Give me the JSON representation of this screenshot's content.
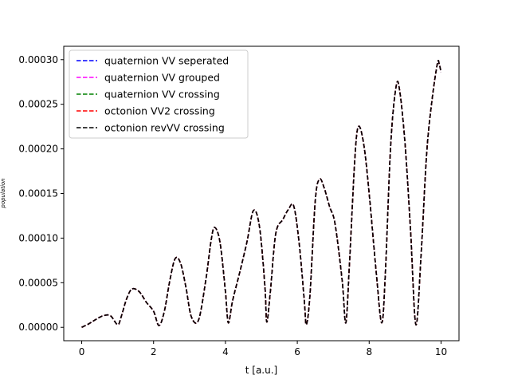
{
  "chart_data": {
    "type": "line",
    "xlabel": "t [a.u.]",
    "ylabel": "population",
    "xlim": [
      -0.5,
      10.5
    ],
    "ylim": [
      -1.5e-05,
      0.000315
    ],
    "xticks": [
      0,
      2,
      4,
      6,
      8,
      10
    ],
    "xtick_labels": [
      "0",
      "2",
      "4",
      "6",
      "8",
      "10"
    ],
    "yticks": [
      0,
      5e-05,
      0.0001,
      0.00015,
      0.0002,
      0.00025,
      0.0003
    ],
    "ytick_labels": [
      "0.00000",
      "0.00005",
      "0.00010",
      "0.00015",
      "0.00020",
      "0.00025",
      "0.00030"
    ],
    "grid": false,
    "legend_position": "upper-left",
    "line_style": "dashed",
    "x": [
      0,
      0.2,
      0.4,
      0.6,
      0.8,
      1.0,
      1.1,
      1.25,
      1.4,
      1.6,
      1.8,
      2.0,
      2.15,
      2.3,
      2.45,
      2.6,
      2.75,
      2.9,
      3.05,
      3.25,
      3.45,
      3.6,
      3.7,
      3.85,
      4.0,
      4.08,
      4.2,
      4.4,
      4.6,
      4.78,
      4.95,
      5.1,
      5.15,
      5.25,
      5.4,
      5.6,
      5.75,
      5.9,
      6.05,
      6.2,
      6.25,
      6.35,
      6.5,
      6.62,
      6.75,
      6.9,
      7.05,
      7.25,
      7.35,
      7.45,
      7.6,
      7.7,
      7.85,
      8.0,
      8.2,
      8.35,
      8.45,
      8.6,
      8.75,
      8.85,
      9.0,
      9.15,
      9.3,
      9.45,
      9.6,
      9.75,
      9.9,
      9.95,
      10.0
    ],
    "series": [
      {
        "name": "quaternion VV seperated",
        "color": "#0000ff",
        "y": [
          0,
          4e-06,
          9e-06,
          1.3e-05,
          1.3e-05,
          3e-06,
          1.2e-05,
          3.2e-05,
          4.3e-05,
          4e-05,
          2.8e-05,
          1.8e-05,
          2e-06,
          1.8e-05,
          5.2e-05,
          7.7e-05,
          7.2e-05,
          4.5e-05,
          1.2e-05,
          8e-06,
          5.2e-05,
          9.7e-05,
          0.000112,
          9.5e-05,
          4e-05,
          5e-06,
          3e-05,
          6.2e-05,
          9.6e-05,
          0.000131,
          0.000112,
          4.5e-05,
          6e-06,
          4e-05,
          0.000105,
          0.000121,
          0.000132,
          0.000136,
          9.5e-05,
          2.7e-05,
          3e-06,
          3.5e-05,
          0.000142,
          0.000166,
          0.000156,
          0.000135,
          0.000116,
          5.2e-05,
          5e-06,
          7e-05,
          0.000188,
          0.000225,
          0.000205,
          0.00015,
          6e-05,
          5e-06,
          6e-05,
          0.000205,
          0.00027,
          0.000265,
          0.000205,
          0.00011,
          3e-06,
          8.5e-05,
          0.000195,
          0.000255,
          0.000296,
          0.000295,
          0.000286
        ]
      },
      {
        "name": "quaternion VV grouped",
        "color": "#ff00ff",
        "y": [
          0,
          4e-06,
          9e-06,
          1.3e-05,
          1.3e-05,
          3e-06,
          1.2e-05,
          3.2e-05,
          4.3e-05,
          4e-05,
          2.8e-05,
          1.8e-05,
          2e-06,
          1.8e-05,
          5.2e-05,
          7.7e-05,
          7.2e-05,
          4.5e-05,
          1.2e-05,
          8e-06,
          5.2e-05,
          9.7e-05,
          0.000112,
          9.5e-05,
          4e-05,
          5e-06,
          3e-05,
          6.2e-05,
          9.6e-05,
          0.000131,
          0.000112,
          4.5e-05,
          6e-06,
          4e-05,
          0.000105,
          0.000121,
          0.000132,
          0.000136,
          9.5e-05,
          2.7e-05,
          3e-06,
          3.5e-05,
          0.000142,
          0.000166,
          0.000156,
          0.000135,
          0.000116,
          5.2e-05,
          5e-06,
          7e-05,
          0.000188,
          0.000225,
          0.000205,
          0.00015,
          6e-05,
          5e-06,
          6e-05,
          0.000205,
          0.00027,
          0.000265,
          0.000205,
          0.00011,
          3e-06,
          8.5e-05,
          0.000195,
          0.000255,
          0.000296,
          0.000295,
          0.000286
        ]
      },
      {
        "name": "quaternion VV crossing",
        "color": "#008000",
        "y": [
          0,
          4e-06,
          9e-06,
          1.3e-05,
          1.3e-05,
          3e-06,
          1.2e-05,
          3.2e-05,
          4.3e-05,
          4e-05,
          2.8e-05,
          1.8e-05,
          2e-06,
          1.8e-05,
          5.2e-05,
          7.7e-05,
          7.2e-05,
          4.5e-05,
          1.2e-05,
          8e-06,
          5.2e-05,
          9.7e-05,
          0.000112,
          9.5e-05,
          4e-05,
          5e-06,
          3e-05,
          6.2e-05,
          9.6e-05,
          0.000131,
          0.000112,
          4.5e-05,
          6e-06,
          4e-05,
          0.000105,
          0.000121,
          0.000132,
          0.000136,
          9.5e-05,
          2.7e-05,
          3e-06,
          3.5e-05,
          0.000142,
          0.000166,
          0.000156,
          0.000135,
          0.000116,
          5.2e-05,
          5e-06,
          7e-05,
          0.000188,
          0.000225,
          0.000205,
          0.00015,
          6e-05,
          5e-06,
          6e-05,
          0.000205,
          0.00027,
          0.000265,
          0.000205,
          0.00011,
          3e-06,
          8.5e-05,
          0.000195,
          0.000255,
          0.000296,
          0.000295,
          0.000286
        ]
      },
      {
        "name": "octonion VV2 crossing",
        "color": "#ff0000",
        "y": [
          0,
          4e-06,
          9e-06,
          1.3e-05,
          1.3e-05,
          3e-06,
          1.2e-05,
          3.2e-05,
          4.3e-05,
          4e-05,
          2.8e-05,
          1.8e-05,
          2e-06,
          1.8e-05,
          5.2e-05,
          7.7e-05,
          7.2e-05,
          4.5e-05,
          1.2e-05,
          8e-06,
          5.2e-05,
          9.7e-05,
          0.000112,
          9.5e-05,
          4e-05,
          5e-06,
          3e-05,
          6.2e-05,
          9.6e-05,
          0.000131,
          0.000112,
          4.5e-05,
          6e-06,
          4e-05,
          0.000105,
          0.000121,
          0.000132,
          0.000136,
          9.5e-05,
          2.7e-05,
          3e-06,
          3.5e-05,
          0.000142,
          0.000166,
          0.000156,
          0.000135,
          0.000116,
          5.2e-05,
          5e-06,
          7e-05,
          0.000188,
          0.000225,
          0.000205,
          0.00015,
          6e-05,
          5e-06,
          6e-05,
          0.000205,
          0.00027,
          0.000265,
          0.000205,
          0.00011,
          3e-06,
          8.5e-05,
          0.000195,
          0.000255,
          0.000296,
          0.000295,
          0.000286
        ]
      },
      {
        "name": "octonion revVV crossing",
        "color": "#000000",
        "y": [
          0,
          4e-06,
          9e-06,
          1.3e-05,
          1.3e-05,
          3e-06,
          1.2e-05,
          3.2e-05,
          4.3e-05,
          4e-05,
          2.8e-05,
          1.8e-05,
          2e-06,
          1.8e-05,
          5.2e-05,
          7.7e-05,
          7.2e-05,
          4.5e-05,
          1.2e-05,
          8e-06,
          5.2e-05,
          9.7e-05,
          0.000112,
          9.5e-05,
          4e-05,
          5e-06,
          3e-05,
          6.2e-05,
          9.6e-05,
          0.000131,
          0.000112,
          4.5e-05,
          6e-06,
          4e-05,
          0.000105,
          0.000121,
          0.000132,
          0.000136,
          9.5e-05,
          2.7e-05,
          3e-06,
          3.5e-05,
          0.000142,
          0.000166,
          0.000156,
          0.000135,
          0.000116,
          5.2e-05,
          5e-06,
          7e-05,
          0.000188,
          0.000225,
          0.000205,
          0.00015,
          6e-05,
          5e-06,
          6e-05,
          0.000205,
          0.00027,
          0.000265,
          0.000205,
          0.00011,
          3e-06,
          8.5e-05,
          0.000195,
          0.000255,
          0.000296,
          0.000295,
          0.000286
        ]
      }
    ]
  }
}
